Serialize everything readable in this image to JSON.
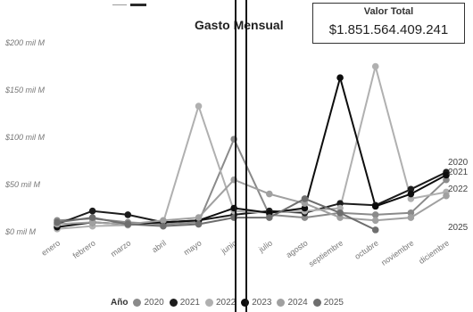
{
  "title": "Gasto Mensual",
  "total_card": {
    "label": "Valor Total",
    "value": "$1.851.564.409.241"
  },
  "legend": {
    "title": "Año"
  },
  "chart_data": {
    "type": "line",
    "title": "Gasto Mensual",
    "xlabel": "",
    "ylabel": "",
    "categories": [
      "enero",
      "febrero",
      "marzo",
      "abril",
      "mayo",
      "junio",
      "julio",
      "agosto",
      "septiembre",
      "octubre",
      "noviembre",
      "diciembre"
    ],
    "y_ticks": [
      {
        "value": 0,
        "label": "$0 mil M"
      },
      {
        "value": 50,
        "label": "$50 mil M"
      },
      {
        "value": 100,
        "label": "$100 mil M"
      },
      {
        "value": 150,
        "label": "$150 mil M"
      },
      {
        "value": 200,
        "label": "$200 mil M"
      }
    ],
    "ylim": [
      0,
      200
    ],
    "grid": false,
    "series": [
      {
        "name": "2020",
        "color": "#8a8a8a",
        "values": [
          12,
          14,
          10,
          8,
          10,
          98,
          18,
          15,
          20,
          18,
          20,
          55
        ]
      },
      {
        "name": "2021",
        "color": "#1c1c1c",
        "values": [
          8,
          22,
          18,
          10,
          12,
          18,
          22,
          20,
          30,
          28,
          45,
          63
        ]
      },
      {
        "name": "2022",
        "color": "#b0b0b0",
        "values": [
          3,
          6,
          7,
          10,
          133,
          22,
          20,
          22,
          25,
          175,
          35,
          42
        ]
      },
      {
        "name": "2023",
        "color": "#0d0d0d",
        "values": [
          5,
          10,
          8,
          10,
          12,
          25,
          20,
          25,
          163,
          27,
          40,
          60
        ]
      },
      {
        "name": "2024",
        "color": "#a0a0a0",
        "values": [
          8,
          10,
          8,
          12,
          15,
          55,
          40,
          30,
          15,
          12,
          15,
          38
        ]
      },
      {
        "name": "2025",
        "color": "#6e6e6e",
        "values": [
          10,
          15,
          8,
          6,
          8,
          15,
          15,
          35,
          20,
          2,
          null,
          null
        ]
      }
    ],
    "end_labels": [
      "2020",
      "2021",
      "2022",
      "2025"
    ],
    "legend_position": "bottom"
  }
}
